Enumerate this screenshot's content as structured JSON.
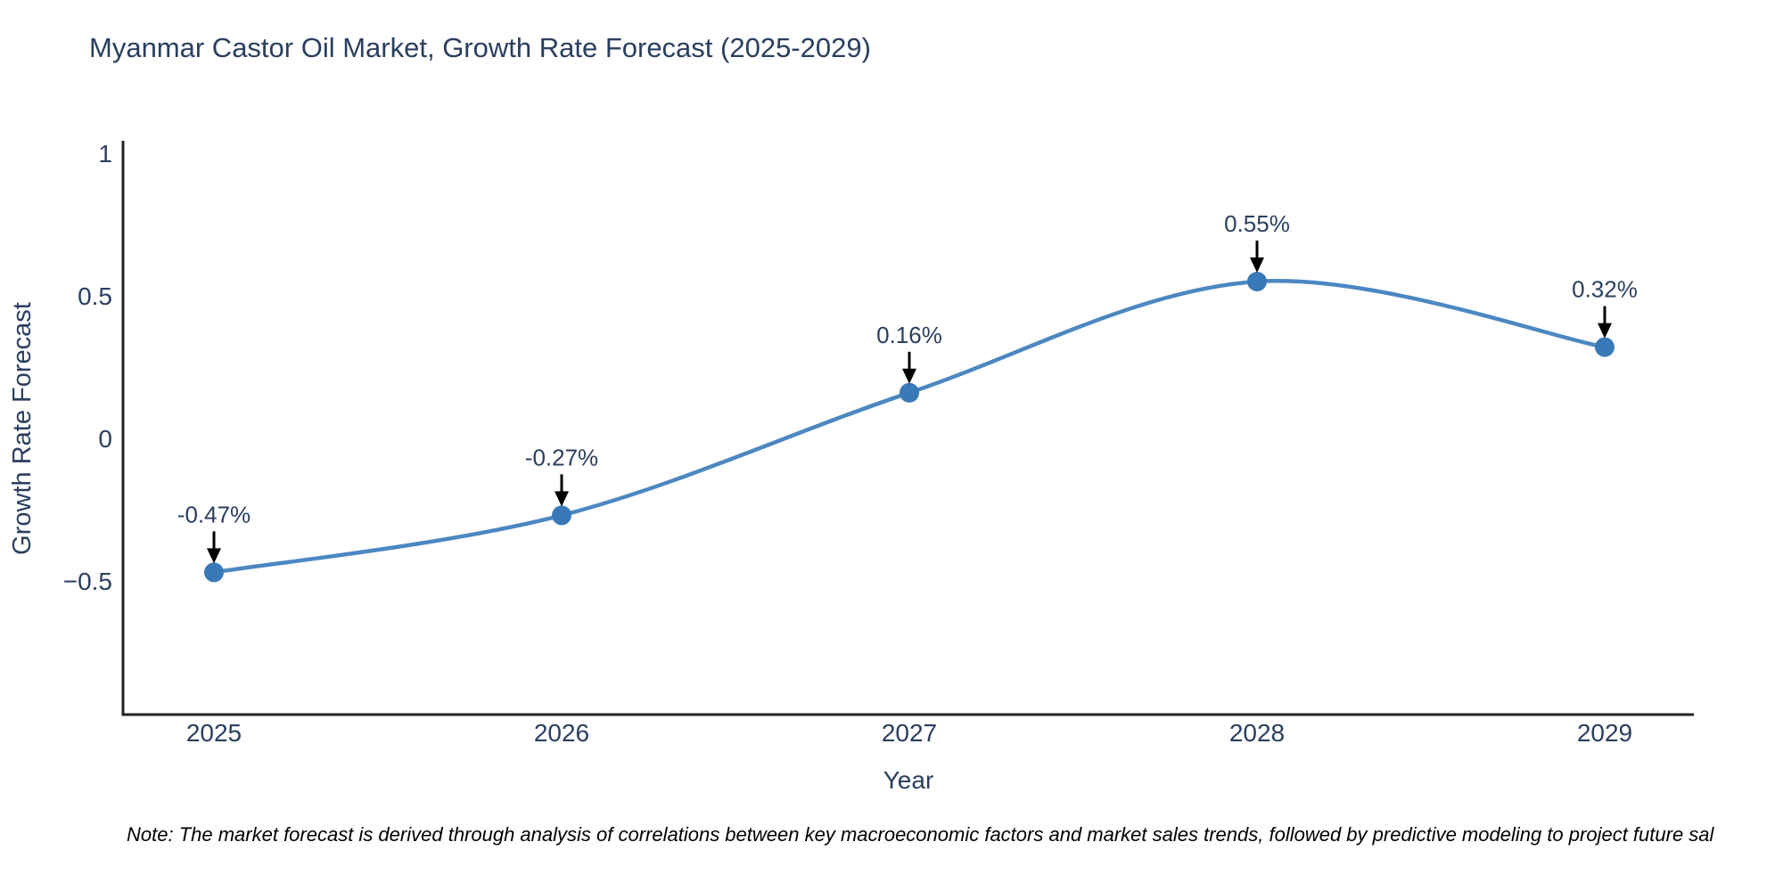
{
  "title": "Myanmar Castor Oil Market, Growth Rate Forecast (2025-2029)",
  "note": "Note: The market forecast is derived through analysis of correlations between key macroeconomic factors and market sales trends, followed by predictive modeling to project future sal",
  "chart_data": {
    "type": "line",
    "line_shape": "spline",
    "x": [
      2025,
      2026,
      2027,
      2028,
      2029
    ],
    "values": [
      -0.47,
      -0.27,
      0.16,
      0.55,
      0.32
    ],
    "point_labels": [
      "-0.47%",
      "-0.27%",
      "0.16%",
      "0.55%",
      "0.32%"
    ],
    "xtick_labels": [
      "2025",
      "2026",
      "2027",
      "2028",
      "2029"
    ],
    "yticks": [
      1,
      0.5,
      0,
      -0.5
    ],
    "ytick_labels": [
      "1",
      "0.5",
      "0",
      "−0.5"
    ],
    "title": "Myanmar Castor Oil Market, Growth Rate Forecast (2025-2029)",
    "xlabel": "Year",
    "ylabel": "Growth Rate Forecast",
    "ylim": [
      -0.97,
      1.04
    ],
    "grid": false,
    "legend": "none",
    "colors": {
      "line": "#4c87c1",
      "marker": "#3a79b8",
      "axis": "#222222",
      "text": "#2a3f5f",
      "arrow": "#000000"
    }
  }
}
